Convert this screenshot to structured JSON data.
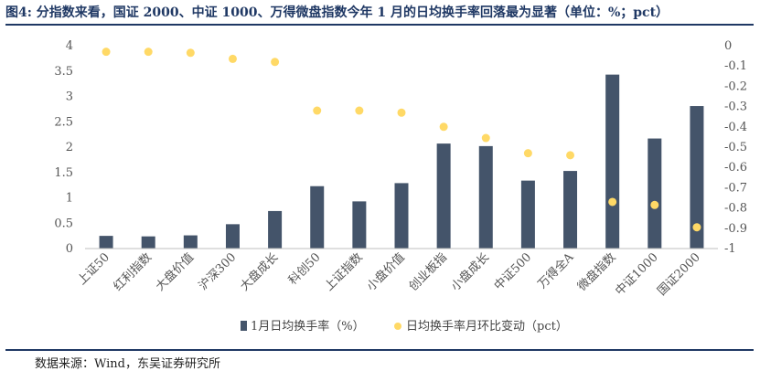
{
  "title": "图4:  分指数来看，国证 2000、中证 1000、万得微盘指数今年 1 月的日均换手率回落最为显著（单位：%；pct）",
  "source": "数据来源：Wind，东吴证券研究所",
  "colors": {
    "bar": "#44546a",
    "dot": "#ffd966",
    "title": "#1f3864"
  },
  "chart_data": {
    "type": "bar",
    "categories": [
      "上证50",
      "红利指数",
      "大盘价值",
      "沪深300",
      "大盘成长",
      "科创50",
      "上证指数",
      "小盘价值",
      "创业板指",
      "小盘成长",
      "中证500",
      "万得全A",
      "微盘指数",
      "中证1000",
      "国证2000"
    ],
    "series": [
      {
        "name": "1月日均换手率（%）",
        "kind": "bar",
        "axis": "left",
        "values": [
          0.25,
          0.24,
          0.26,
          0.48,
          0.74,
          1.23,
          0.93,
          1.29,
          2.07,
          2.02,
          1.34,
          1.53,
          3.43,
          2.17,
          2.81
        ]
      },
      {
        "name": "日均换手率月环比变动（pct）",
        "kind": "scatter",
        "axis": "right",
        "values": [
          -0.03,
          -0.03,
          -0.035,
          -0.065,
          -0.08,
          -0.32,
          -0.32,
          -0.33,
          -0.4,
          -0.455,
          -0.53,
          -0.54,
          -0.77,
          -0.785,
          -0.895
        ]
      }
    ],
    "yleft": {
      "min": 0,
      "max": 4,
      "ticks": [
        "0",
        "0.5",
        "1",
        "1.5",
        "2",
        "2.5",
        "3",
        "3.5",
        "4"
      ]
    },
    "yright": {
      "min": -1,
      "max": 0,
      "ticks": [
        "0",
        "-0.1",
        "-0.2",
        "-0.3",
        "-0.4",
        "-0.5",
        "-0.6",
        "-0.7",
        "-0.8",
        "-0.9",
        "-1"
      ]
    },
    "grid": false,
    "legend": "bottom"
  }
}
